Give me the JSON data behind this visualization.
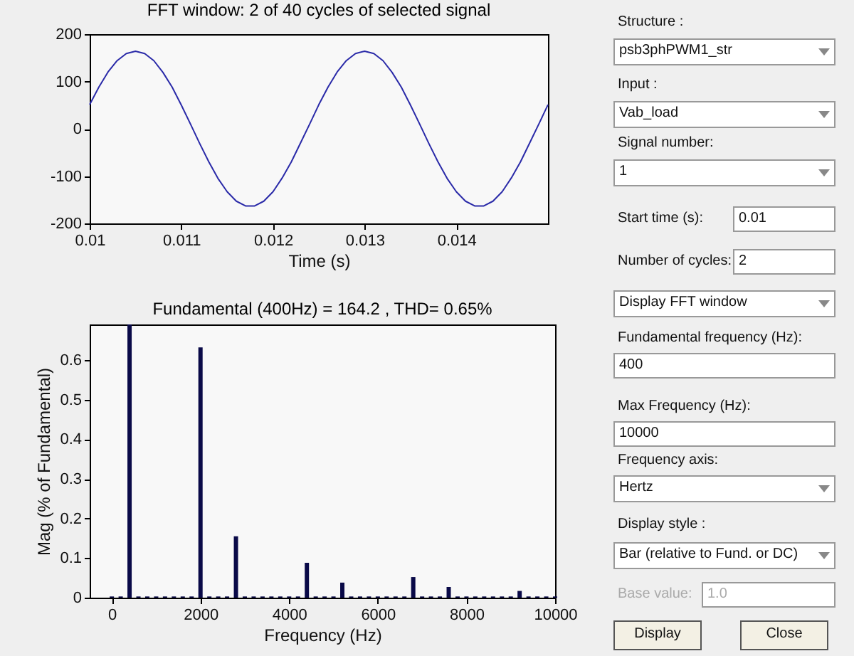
{
  "chart_data": [
    {
      "type": "line",
      "title": "FFT window: 2 of 40 cycles of selected signal",
      "xlabel": "Time (s)",
      "color": "#2a2aa8",
      "x": [
        0.01,
        0.0101,
        0.0102,
        0.0103,
        0.0104,
        0.0105,
        0.0106,
        0.0107,
        0.0108,
        0.0109,
        0.011,
        0.0111,
        0.0112,
        0.0113,
        0.0114,
        0.0115,
        0.0116,
        0.0117,
        0.0118,
        0.0119,
        0.012,
        0.0121,
        0.0122,
        0.0123,
        0.0124,
        0.0125,
        0.0126,
        0.0127,
        0.0128,
        0.0129,
        0.013,
        0.0131,
        0.0132,
        0.0133,
        0.0134,
        0.0135,
        0.0136,
        0.0137,
        0.0138,
        0.0139,
        0.014,
        0.0141,
        0.0142,
        0.0143,
        0.0144,
        0.0145,
        0.0146,
        0.0147,
        0.0148,
        0.0149,
        0.015
      ],
      "values": [
        51,
        88,
        120,
        144,
        159,
        164,
        159,
        144,
        119,
        88,
        50,
        10,
        -31,
        -70,
        -105,
        -133,
        -153,
        -163,
        -163,
        -153,
        -133,
        -104,
        -70,
        -30,
        10,
        51,
        88,
        120,
        144,
        159,
        164,
        159,
        144,
        119,
        88,
        50,
        10,
        -31,
        -70,
        -105,
        -133,
        -153,
        -163,
        -163,
        -153,
        -133,
        -104,
        -70,
        -30,
        10,
        51
      ],
      "xlim": [
        0.01,
        0.015
      ],
      "xticks": [
        0.01,
        0.011,
        0.012,
        0.013,
        0.014
      ],
      "ylim": [
        -200,
        200
      ],
      "yticks": [
        -200,
        -100,
        0,
        100,
        200
      ]
    },
    {
      "type": "bar",
      "title": "Fundamental (400Hz) = 164.2 , THD= 0.65%",
      "xlabel": "Frequency (Hz)",
      "ylabel": "Mag (% of Fundamental)",
      "color": "#0a0a48",
      "x": [
        0,
        200,
        400,
        600,
        800,
        1000,
        1200,
        1400,
        1600,
        1800,
        2000,
        2200,
        2400,
        2600,
        2800,
        3000,
        3200,
        3400,
        3600,
        3800,
        4000,
        4200,
        4400,
        4600,
        4800,
        5000,
        5200,
        5400,
        5600,
        5800,
        6000,
        6200,
        6400,
        6600,
        6800,
        7000,
        7200,
        7400,
        7600,
        7800,
        8000,
        8200,
        8400,
        8600,
        8800,
        9000,
        9200,
        9400,
        9600,
        9800,
        10000
      ],
      "values": [
        0.003,
        0.003,
        0.69,
        0.003,
        0.003,
        0.003,
        0.003,
        0.003,
        0.003,
        0.003,
        0.632,
        0.003,
        0.003,
        0.003,
        0.155,
        0.003,
        0.003,
        0.003,
        0.003,
        0.003,
        0.003,
        0.003,
        0.088,
        0.003,
        0.003,
        0.003,
        0.038,
        0.003,
        0.003,
        0.003,
        0.003,
        0.003,
        0.003,
        0.003,
        0.052,
        0.003,
        0.003,
        0.003,
        0.027,
        0.003,
        0.003,
        0.003,
        0.003,
        0.003,
        0.003,
        0.003,
        0.017,
        0.003,
        0.003,
        0.003,
        0.003
      ],
      "xlim": [
        -500,
        10000
      ],
      "xticks": [
        0,
        2000,
        4000,
        6000,
        8000,
        10000
      ],
      "ylim": [
        0,
        0.69
      ],
      "yticks": [
        0,
        0.1,
        0.2,
        0.3,
        0.4,
        0.5,
        0.6
      ]
    },
    {
      "type": "other",
      "annotations": [
        "Structure :",
        "psb3phPWM1_str",
        "Input :",
        "Vab_load",
        "Signal number:",
        "1",
        "Start time (s):",
        "0.01",
        "Number of cycles:",
        "2",
        "Display FFT window",
        "Fundamental frequency (Hz):",
        "400",
        "Max Frequency (Hz):",
        "10000",
        "Frequency axis:",
        "Hertz",
        "Display style :",
        "Bar (relative to Fund. or DC)",
        "Base value:",
        "1.0",
        "Display",
        "Close"
      ]
    }
  ]
}
